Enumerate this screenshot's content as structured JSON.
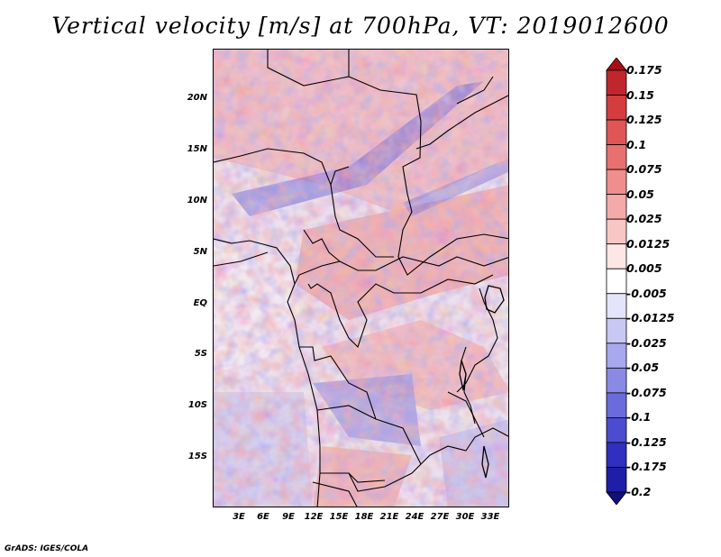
{
  "title": "Vertical velocity [m/s] at 700hPa, VT: 2019012600",
  "footer": "GrADS: IGES/COLA",
  "map": {
    "lat_ticks": [
      "20N",
      "15N",
      "10N",
      "5N",
      "EQ",
      "5S",
      "10S",
      "15S"
    ],
    "lon_ticks": [
      "3E",
      "6E",
      "9E",
      "12E",
      "15E",
      "18E",
      "21E",
      "24E",
      "27E",
      "30E",
      "33E"
    ]
  },
  "colorbar": {
    "labels": [
      "0.175",
      "0.15",
      "0.125",
      "0.1",
      "0.075",
      "0.05",
      "0.025",
      "0.0125",
      "0.005",
      "-0.005",
      "-0.0125",
      "-0.025",
      "-0.05",
      "-0.075",
      "-0.1",
      "-0.125",
      "-0.175",
      "-0.2"
    ],
    "colors": [
      "#a50f15",
      "#c0272d",
      "#d43d3d",
      "#e05555",
      "#e87070",
      "#f08e8e",
      "#f5aaaa",
      "#f9c6c6",
      "#fde6e6",
      "#ffffff",
      "#e4e4fb",
      "#c8c8f5",
      "#a8a8ee",
      "#8a8ae6",
      "#6b6bdc",
      "#4c4cd0",
      "#2f2fc0",
      "#1e1ea8",
      "#10107a"
    ]
  }
}
